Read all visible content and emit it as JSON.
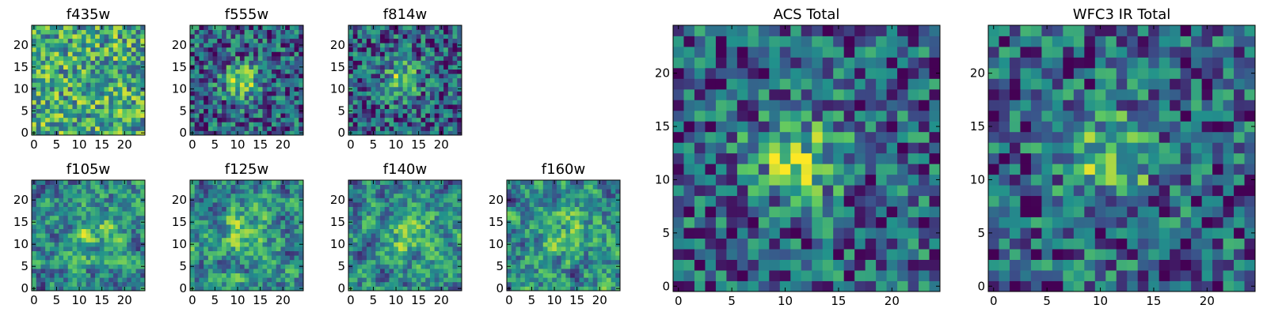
{
  "figure": {
    "colormap": "viridis",
    "colormap_stops": [
      "#440154",
      "#3b528b",
      "#21918c",
      "#5ec962",
      "#fde725"
    ],
    "frame_color": "#000000"
  },
  "chart_data": [
    {
      "type": "heatmap",
      "title": "f435w",
      "grid": false,
      "xlim": [
        0,
        24
      ],
      "ylim": [
        0,
        24
      ],
      "xticks": [
        "0",
        "5",
        "10",
        "15",
        "20"
      ],
      "yticks": [
        "0",
        "5",
        "10",
        "15",
        "20"
      ],
      "pattern": "noise-weak"
    },
    {
      "type": "heatmap",
      "title": "f555w",
      "grid": false,
      "xlim": [
        0,
        24
      ],
      "ylim": [
        0,
        24
      ],
      "xticks": [
        "0",
        "5",
        "10",
        "15",
        "20"
      ],
      "yticks": [
        "0",
        "5",
        "10",
        "15",
        "20"
      ],
      "pattern": "central-source"
    },
    {
      "type": "heatmap",
      "title": "f814w",
      "grid": false,
      "xlim": [
        0,
        24
      ],
      "ylim": [
        0,
        24
      ],
      "xticks": [
        "0",
        "5",
        "10",
        "15",
        "20"
      ],
      "yticks": [
        "0",
        "5",
        "10",
        "15",
        "20"
      ],
      "pattern": "central-source"
    },
    {
      "type": "heatmap",
      "title": "f105w",
      "grid": false,
      "xlim": [
        0,
        24
      ],
      "ylim": [
        0,
        24
      ],
      "xticks": [
        "0",
        "5",
        "10",
        "15",
        "20"
      ],
      "yticks": [
        "0",
        "5",
        "10",
        "15",
        "20"
      ],
      "pattern": "diffuse"
    },
    {
      "type": "heatmap",
      "title": "f125w",
      "grid": false,
      "xlim": [
        0,
        24
      ],
      "ylim": [
        0,
        24
      ],
      "xticks": [
        "0",
        "5",
        "10",
        "15",
        "20"
      ],
      "yticks": [
        "0",
        "5",
        "10",
        "15",
        "20"
      ],
      "pattern": "diffuse"
    },
    {
      "type": "heatmap",
      "title": "f140w",
      "grid": false,
      "xlim": [
        0,
        24
      ],
      "ylim": [
        0,
        24
      ],
      "xticks": [
        "0",
        "5",
        "10",
        "15",
        "20"
      ],
      "yticks": [
        "0",
        "5",
        "10",
        "15",
        "20"
      ],
      "pattern": "diffuse"
    },
    {
      "type": "heatmap",
      "title": "f160w",
      "grid": false,
      "xlim": [
        0,
        24
      ],
      "ylim": [
        0,
        24
      ],
      "xticks": [
        "0",
        "5",
        "10",
        "15",
        "20"
      ],
      "yticks": [
        "0",
        "5",
        "10",
        "15",
        "20"
      ],
      "pattern": "diffuse"
    },
    {
      "type": "heatmap",
      "title": "ACS Total",
      "grid": false,
      "xlim": [
        0,
        24
      ],
      "ylim": [
        0,
        24
      ],
      "xticks": [
        "0",
        "5",
        "10",
        "15",
        "20"
      ],
      "yticks": [
        "0",
        "5",
        "10",
        "15",
        "20"
      ],
      "pattern": "central-source"
    },
    {
      "type": "heatmap",
      "title": "WFC3 IR Total",
      "grid": false,
      "xlim": [
        0,
        24
      ],
      "ylim": [
        0,
        24
      ],
      "xticks": [
        "0",
        "5",
        "10",
        "15",
        "20"
      ],
      "yticks": [
        "0",
        "5",
        "10",
        "15",
        "20"
      ],
      "pattern": "central-source"
    }
  ]
}
